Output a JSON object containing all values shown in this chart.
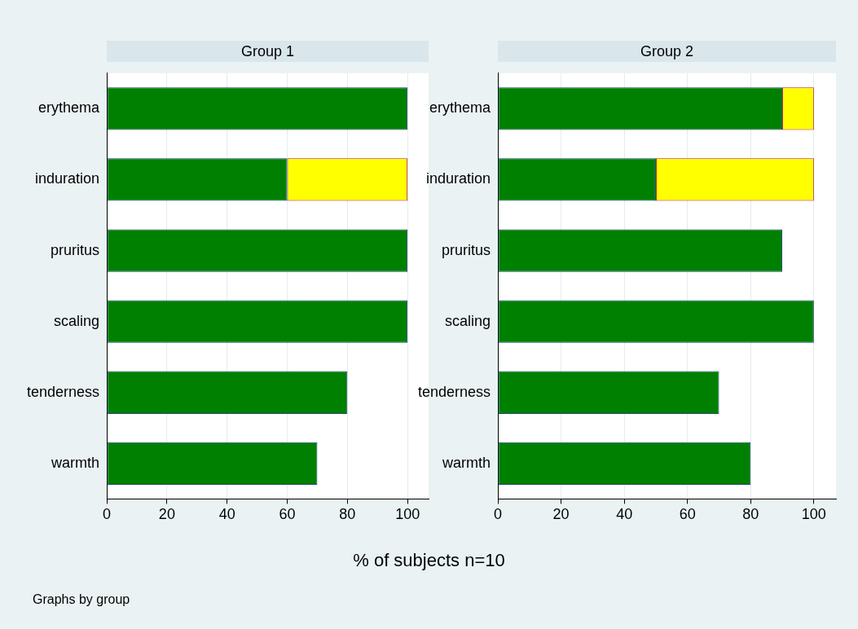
{
  "chart_data": [
    {
      "type": "bar",
      "orientation": "horizontal",
      "stacked": true,
      "title": "Group 1",
      "xlabel": "% of subjects n=10",
      "annotations": [
        "Graphs by group"
      ],
      "categories": [
        "erythema",
        "induration",
        "pruritus",
        "scaling",
        "tenderness",
        "warmth"
      ],
      "series": [
        {
          "color": "#008000",
          "values": [
            100,
            60,
            100,
            100,
            80,
            70
          ]
        },
        {
          "color": "#ffff00",
          "values": [
            0,
            40,
            0,
            0,
            0,
            0
          ]
        }
      ],
      "xlim": [
        0,
        107
      ],
      "xticks": [
        0,
        20,
        40,
        60,
        80,
        100
      ],
      "grid": "x",
      "legend": false
    },
    {
      "type": "bar",
      "orientation": "horizontal",
      "stacked": true,
      "title": "Group 2",
      "categories": [
        "erythema",
        "induration",
        "pruritus",
        "scaling",
        "tenderness",
        "warmth"
      ],
      "series": [
        {
          "color": "#008000",
          "values": [
            90,
            50,
            90,
            100,
            70,
            80
          ]
        },
        {
          "color": "#ffff00",
          "values": [
            10,
            50,
            0,
            0,
            0,
            0
          ]
        }
      ],
      "xlim": [
        0,
        107
      ],
      "xticks": [
        0,
        20,
        40,
        60,
        80,
        100
      ],
      "grid": "x",
      "legend": false
    }
  ]
}
